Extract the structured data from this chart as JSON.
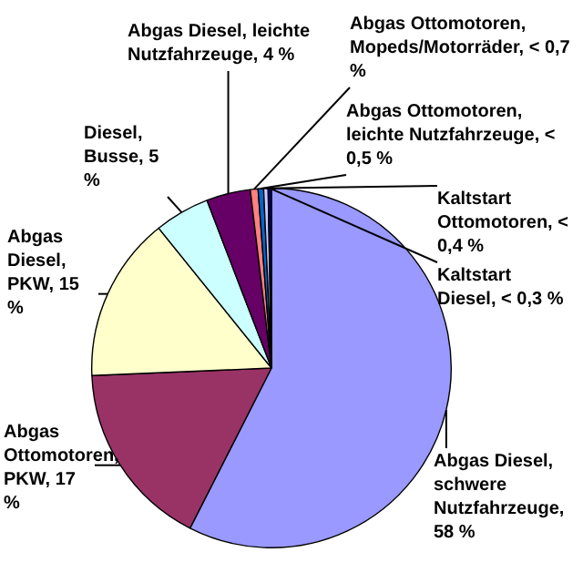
{
  "chart_data": {
    "type": "pie",
    "categories": [
      "Abgas Diesel, schwere Nutzfahrzeuge, 58 %",
      "Abgas Ottomotoren, PKW, 17 %",
      "Abgas Diesel, PKW, 15 %",
      "Diesel, Busse, 5 %",
      "Abgas Diesel, leichte Nutzfahrzeuge, 4 %",
      "Abgas Ottomotoren, Mopeds/Motorräder, < 0,7 %",
      "Abgas Ottomotoren, leichte Nutzfahrzeuge, < 0,5 %",
      "Kaltstart Ottomotoren, < 0,4 %",
      "Kaltstart Diesel, < 0,3 %"
    ],
    "values": [
      58,
      17,
      15,
      5,
      4,
      0.7,
      0.5,
      0.4,
      0.3
    ],
    "colors": [
      "#9999ff",
      "#993366",
      "#ffffcc",
      "#ccffff",
      "#660066",
      "#ff8080",
      "#0066cc",
      "#ccccff",
      "#000080"
    ],
    "legend": false
  }
}
